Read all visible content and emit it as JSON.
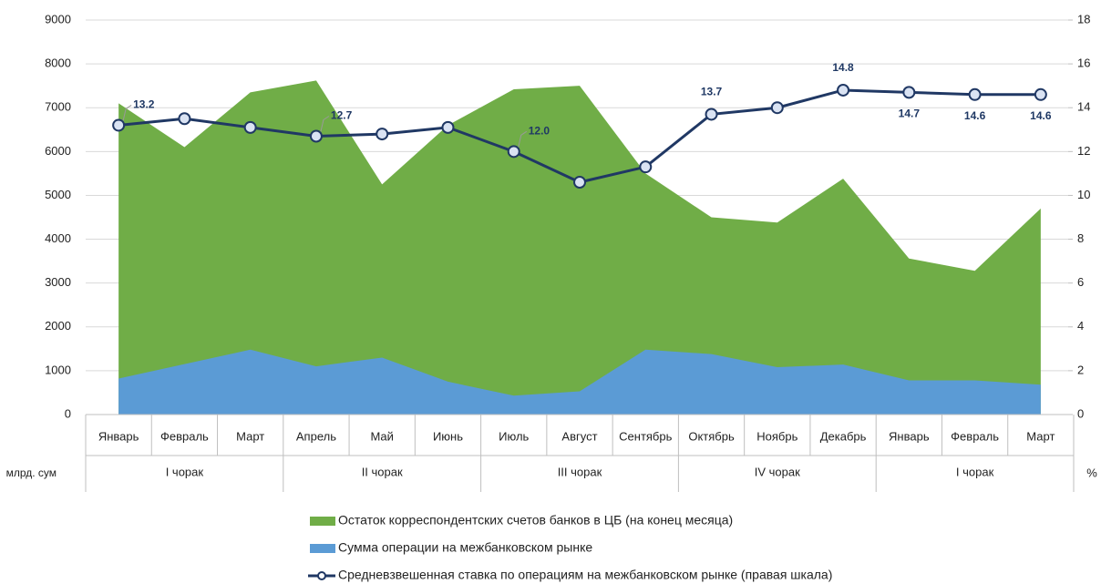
{
  "chart_data": {
    "type": "area_line",
    "categories": [
      "Январь",
      "Февраль",
      "Март",
      "Апрель",
      "Май",
      "Июнь",
      "Июль",
      "Август",
      "Сентябрь",
      "Октябрь",
      "Ноябрь",
      "Декабрь",
      "Январь",
      "Февраль",
      "Март"
    ],
    "groups": [
      "I чорак",
      "II чорак",
      "III чорак",
      "IV чорак",
      "I чорак"
    ],
    "y_unit": "млрд. сум",
    "y2_unit": "%",
    "series": [
      {
        "name": "Остаток корреспондентских счетов банков в ЦБ (на конец месяца)",
        "color": "#70ad47",
        "type": "area",
        "values": [
          7100,
          6100,
          7350,
          7620,
          5250,
          6600,
          7420,
          7500,
          5500,
          4500,
          4380,
          5380,
          3560,
          3280,
          4700
        ]
      },
      {
        "name": "Сумма операции на межбанковском рынке",
        "color": "#5b9bd5",
        "type": "area",
        "values": [
          820,
          1150,
          1480,
          1100,
          1300,
          750,
          430,
          530,
          1480,
          1380,
          1080,
          1140,
          780,
          780,
          680
        ]
      },
      {
        "name": "Средневзвешенная ставка по операциям на межбанковском рынке (правая шкала)",
        "color": "#203864",
        "type": "line",
        "axis": "y2",
        "values": [
          13.2,
          13.5,
          13.1,
          12.7,
          12.8,
          13.1,
          12.0,
          10.6,
          11.3,
          13.7,
          14.0,
          14.8,
          14.7,
          14.6,
          14.6
        ],
        "value_labels": [
          "13.2",
          null,
          null,
          "12.7",
          null,
          null,
          "12.0",
          null,
          null,
          "13.7",
          null,
          "14.8",
          "14.7",
          "14.6",
          "14.6"
        ]
      }
    ],
    "ylim": [
      0,
      9000
    ],
    "yticks": [
      0,
      1000,
      2000,
      3000,
      4000,
      5000,
      6000,
      7000,
      8000,
      9000
    ],
    "y2lim": [
      0,
      18
    ],
    "y2ticks": [
      0,
      2,
      4,
      6,
      8,
      10,
      12,
      14,
      16,
      18
    ],
    "grid": true
  }
}
